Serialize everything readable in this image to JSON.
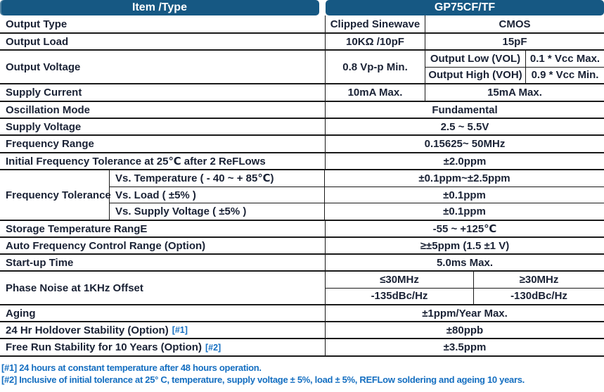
{
  "header": {
    "item_type": "Item /Type",
    "product": "GP75CF/TF"
  },
  "colors": {
    "header_bg": "#165883",
    "body_text": "#1a2235",
    "note_blue": "#156fc1",
    "border": "#1a1a1a"
  },
  "table": {
    "output_type": {
      "label": "Output Type",
      "sine": "Clipped Sinewave",
      "cmos": "CMOS"
    },
    "output_load": {
      "label": "Output Load",
      "sine": "10KΩ /10pF",
      "cmos": "15pF"
    },
    "output_voltage": {
      "label": "Output Voltage",
      "sine": "0.8 Vp-p Min.",
      "cmos_rows": [
        {
          "name": "Output Low (VOL)",
          "value": "0.1 * Vcc Max."
        },
        {
          "name": "Output High (VOH)",
          "value": "0.9 * Vcc Min."
        }
      ]
    },
    "supply_current": {
      "label": "Supply Current",
      "sine": "10mA Max.",
      "cmos": "15mA Max."
    },
    "oscillation_mode": {
      "label": "Oscillation Mode",
      "value": "Fundamental"
    },
    "supply_voltage": {
      "label": "Supply Voltage",
      "value": "2.5 ~ 5.5V"
    },
    "frequency_range": {
      "label": "Frequency Range",
      "value": "0.15625~ 50MHz"
    },
    "initial_tolerance": {
      "label": "Initial Frequency Tolerance at 25℃ after 2 ReFLows",
      "value": "±2.0ppm"
    },
    "frequency_tolerance": {
      "label": "Frequency Tolerance",
      "rows": [
        {
          "name": "Vs. Temperature ( - 40 ~ + 85℃)",
          "value": "±0.1ppm~±2.5ppm"
        },
        {
          "name": "Vs. Load ( ±5% )",
          "value": "±0.1ppm"
        },
        {
          "name": "Vs. Supply Voltage ( ±5% )",
          "value": "±0.1ppm"
        }
      ]
    },
    "storage_temp": {
      "label": "Storage Temperature RangE",
      "value": "-55 ~ +125℃"
    },
    "afc": {
      "label": "Auto Frequency Control Range (Option)",
      "value": "≥±5ppm (1.5 ±1 V)"
    },
    "startup": {
      "label": "Start-up Time",
      "value": "5.0ms Max."
    },
    "phase_noise": {
      "label": "Phase Noise at 1KHz Offset",
      "cols": [
        {
          "name": "≤30MHz",
          "value": "-135dBc/Hz"
        },
        {
          "name": "≥30MHz",
          "value": "-130dBc/Hz"
        }
      ]
    },
    "aging": {
      "label": "Aging",
      "value": "±1ppm/Year Max."
    },
    "holdover": {
      "label": "24 Hr Holdover Stability (Option)",
      "tag": "[#1]",
      "value": "±80ppb"
    },
    "freerun": {
      "label": "Free Run Stability for 10 Years (Option)",
      "tag": "[#2]",
      "value": "±3.5ppm"
    }
  },
  "footnotes": [
    "[#1] 24 hours at constant temperature after 48 hours operation.",
    "[#2] Inclusive of initial tolerance at 25° C, temperature, supply voltage ± 5%, load ± 5%, REFLow soldering and ageing 10  years."
  ]
}
